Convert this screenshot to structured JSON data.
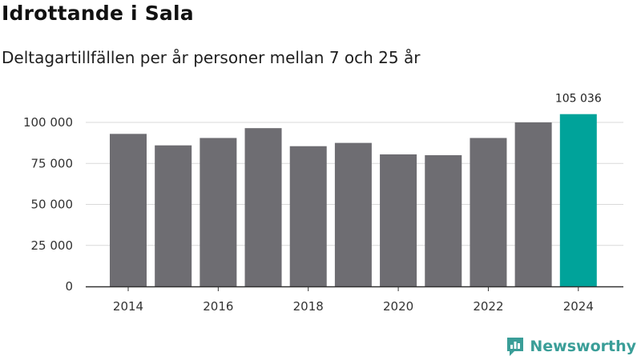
{
  "header": {
    "title": "Idrottande i Sala",
    "subtitle": "Deltagartillfällen per år personer mellan 7 och 25 år"
  },
  "brand": {
    "name": "Newsworthy",
    "logo_icon": "newsworthy-logo-icon"
  },
  "colors": {
    "bar": "#6e6d72",
    "highlight": "#00a39a",
    "grid": "#d9d9d9",
    "axis": "#333333"
  },
  "chart_data": {
    "type": "bar",
    "title": "Idrottande i Sala",
    "subtitle": "Deltagartillfällen per år personer mellan 7 och 25 år",
    "xlabel": "",
    "ylabel": "",
    "categories": [
      "2014",
      "2015",
      "2016",
      "2017",
      "2018",
      "2019",
      "2020",
      "2021",
      "2022",
      "2023",
      "2024"
    ],
    "values": [
      93000,
      86000,
      90500,
      96500,
      85500,
      87500,
      80500,
      80000,
      90500,
      100000,
      105036
    ],
    "highlight_index": 10,
    "data_labels": [
      {
        "index": 10,
        "text": "105 036"
      }
    ],
    "x_tick_labels": [
      "2014",
      "2016",
      "2018",
      "2020",
      "2022",
      "2024"
    ],
    "y_ticks": [
      0,
      25000,
      50000,
      75000,
      100000
    ],
    "y_tick_labels": [
      "0",
      "25 000",
      "50 000",
      "75 000",
      "100 000"
    ],
    "ylim": [
      0,
      110000
    ],
    "grid": true,
    "legend": "none"
  }
}
